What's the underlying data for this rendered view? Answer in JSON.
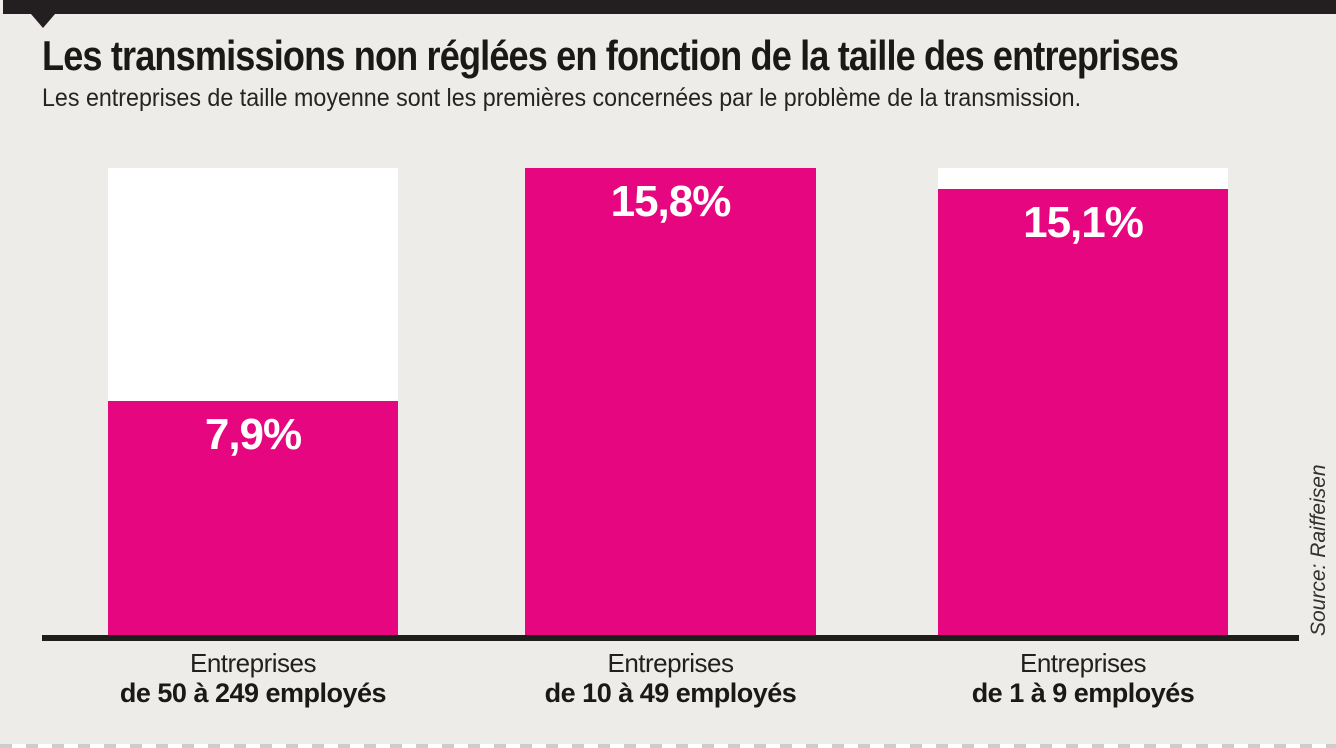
{
  "header": {
    "title": "Les transmissions non réglées en fonction de la taille des entreprises",
    "subtitle": "Les entreprises de taille moyenne sont les premières concernées par le problème de la transmission."
  },
  "source_label": "Source: Raiffeisen",
  "colors": {
    "bar_fill_pink": "#e6067f",
    "bar_max_frame_white": "#ffffff",
    "accent_black": "#231f20",
    "background_gray": "#edece8",
    "axis_black": "#1d1d1b",
    "value_text_white": "#ffffff",
    "text_dark": "#1d1b1a"
  },
  "chart_data": {
    "type": "bar",
    "title": "Les transmissions non réglées en fonction de la taille des entreprises",
    "subtitle": "Les entreprises de taille moyenne sont les premières concernées par le problème de la transmission.",
    "source": "Source: Raiffeisen",
    "unit": "%",
    "ylim": [
      0,
      15.8
    ],
    "max_value": 15.8,
    "grid": false,
    "legend": null,
    "categories": [
      "Entreprises de 50 à 249 employés",
      "Entreprises de 10 à 49 employés",
      "Entreprises de 1 à 9 employés"
    ],
    "values": [
      7.9,
      15.8,
      15.1
    ],
    "bars": [
      {
        "value": 7.9,
        "label": "7,9%",
        "category_line1": "Entreprises",
        "category_line2": "de 50 à 249 employés"
      },
      {
        "value": 15.8,
        "label": "15,8%",
        "category_line1": "Entreprises",
        "category_line2": "de 10 à 49 employés"
      },
      {
        "value": 15.1,
        "label": "15,1%",
        "category_line1": "Entreprises",
        "category_line2": "de 1 à 9 employés"
      }
    ]
  }
}
